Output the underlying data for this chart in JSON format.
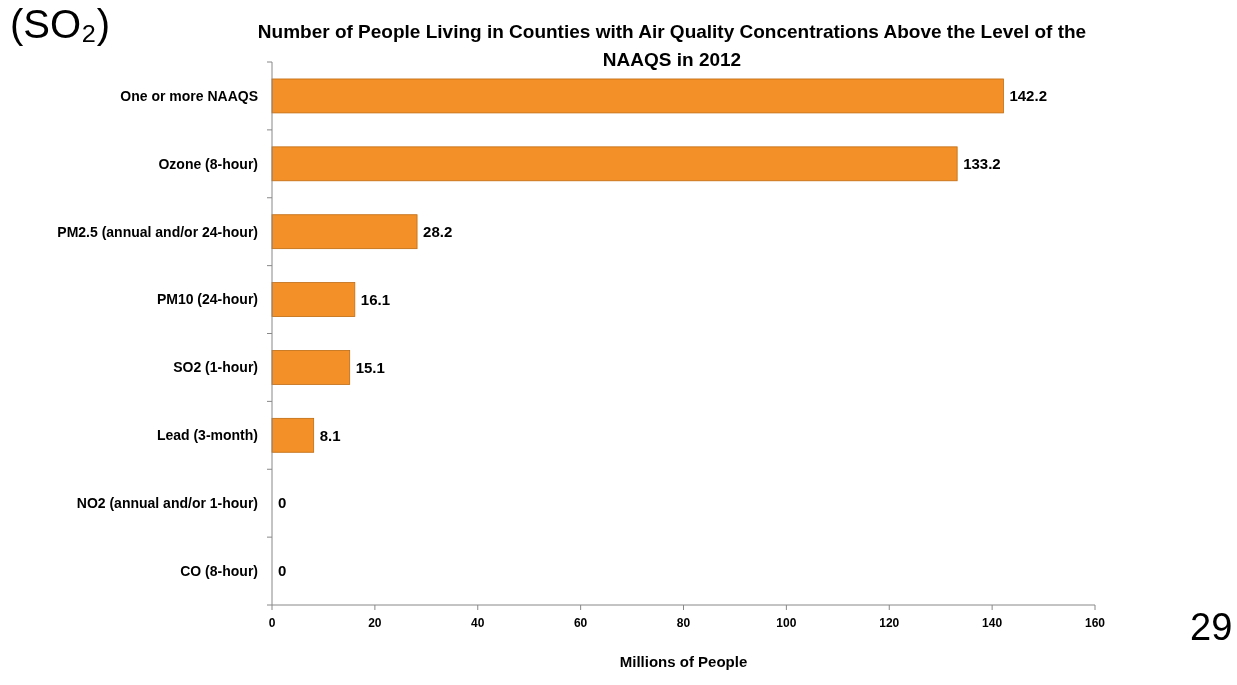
{
  "chart_data": {
    "type": "bar",
    "orientation": "horizontal",
    "title": "Number of People Living in Counties with Air Quality Concentrations Above the Level of the NAAQS in 2012",
    "xlabel": "Millions of People",
    "categories": [
      "One or more NAAQS",
      "Ozone (8-hour)",
      "PM2.5 (annual and/or 24-hour)",
      "PM10 (24-hour)",
      "SO2 (1-hour)",
      "Lead (3-month)",
      "NO2 (annual and/or 1-hour)",
      "CO (8-hour)"
    ],
    "values": [
      142.2,
      133.2,
      28.2,
      16.1,
      15.1,
      8.1,
      0,
      0
    ],
    "color": "#f39027",
    "xlim": [
      0,
      160
    ],
    "xticks": [
      0,
      20,
      40,
      60,
      80,
      100,
      120,
      140,
      160
    ],
    "data_labels": true,
    "grid": false,
    "annotations": [
      "(SO₂)",
      "29"
    ]
  }
}
